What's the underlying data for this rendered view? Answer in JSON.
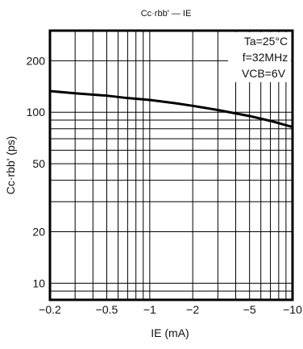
{
  "chart_data": {
    "type": "line",
    "title": "Cc·rbb' — IE",
    "xlabel": "IE (mA)",
    "ylabel": "Cc·rbb' (ps)",
    "x_scale": "log",
    "y_scale": "log",
    "xlim": [
      -0.2,
      -10
    ],
    "ylim": [
      8,
      300
    ],
    "x_ticks": [
      -0.2,
      -0.5,
      -1,
      -2,
      -5,
      -10
    ],
    "x_tick_labels": [
      "−0.2",
      "−0.5",
      "−1",
      "−2",
      "−5",
      "−10"
    ],
    "y_ticks": [
      10,
      20,
      50,
      100,
      200
    ],
    "y_tick_labels": [
      "10",
      "20",
      "50",
      "100",
      "200"
    ],
    "grid": true,
    "legend_position": "top-right",
    "conditions": [
      "Ta=25°C",
      "f=32MHz",
      "VCB=6V"
    ],
    "series": [
      {
        "x": [
          -0.2,
          -0.3,
          -0.5,
          -0.7,
          -1,
          -1.5,
          -2,
          -3,
          -5,
          -7,
          -10
        ],
        "y": [
          133,
          129,
          125,
          121,
          118,
          113,
          109,
          103,
          95,
          89,
          82
        ]
      }
    ]
  }
}
